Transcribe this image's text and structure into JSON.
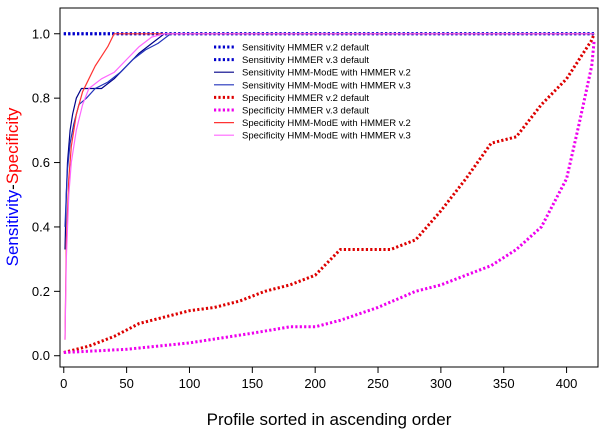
{
  "chart_data": {
    "type": "line",
    "title": "",
    "xlabel": "Profile sorted in ascending order",
    "ylabel": {
      "part1": "Sensitivity",
      "separator": "-",
      "part2": "Specificity",
      "part1_color": "#0000ff",
      "part2_color": "#ff0000",
      "separator_color": "#000000"
    },
    "xlim": [
      -3,
      425
    ],
    "ylim": [
      -0.035,
      1.08
    ],
    "xticks": [
      0,
      50,
      100,
      150,
      200,
      250,
      300,
      350,
      400
    ],
    "yticks": [
      0.0,
      0.2,
      0.4,
      0.6,
      0.8,
      1.0
    ],
    "ytick_labels": [
      "0.0",
      "0.2",
      "0.4",
      "0.6",
      "0.8",
      "1.0"
    ],
    "legend_position": "top-center",
    "series": [
      {
        "name": "Sensitivity HMMER v.2 default",
        "color": "#0000cc",
        "style": "dotted",
        "x": [
          0,
          422
        ],
        "y": [
          1.0,
          1.0
        ]
      },
      {
        "name": "Sensitivity HMMER v.3 default",
        "color": "#0000cc",
        "style": "dotted",
        "x": [
          0,
          422
        ],
        "y": [
          1.0,
          1.0
        ]
      },
      {
        "name": "Sensitivity HMM-ModE with HMMER v.2",
        "color": "#000088",
        "style": "solid",
        "x": [
          1,
          2,
          3,
          5,
          7,
          10,
          14,
          20,
          30,
          40,
          50,
          60,
          70,
          80,
          85,
          90,
          422
        ],
        "y": [
          0.33,
          0.5,
          0.6,
          0.7,
          0.75,
          0.8,
          0.83,
          0.83,
          0.83,
          0.86,
          0.9,
          0.94,
          0.97,
          1.0,
          1.0,
          1.0,
          1.0
        ]
      },
      {
        "name": "Sensitivity HMM-ModE with HMMER v.3",
        "color": "#2233bb",
        "style": "solid",
        "x": [
          1,
          2,
          3,
          5,
          8,
          12,
          18,
          25,
          35,
          45,
          55,
          65,
          75,
          85,
          422
        ],
        "y": [
          0.4,
          0.5,
          0.58,
          0.66,
          0.72,
          0.78,
          0.8,
          0.83,
          0.85,
          0.88,
          0.92,
          0.95,
          0.97,
          1.0,
          1.0
        ]
      },
      {
        "name": "Specificity HMMER v.2 default",
        "color": "#dd0000",
        "style": "dotted",
        "x": [
          0,
          20,
          40,
          60,
          80,
          100,
          120,
          140,
          160,
          180,
          200,
          220,
          240,
          260,
          280,
          300,
          320,
          340,
          360,
          380,
          400,
          410,
          420,
          422
        ],
        "y": [
          0.01,
          0.03,
          0.06,
          0.1,
          0.12,
          0.14,
          0.15,
          0.17,
          0.2,
          0.22,
          0.25,
          0.33,
          0.33,
          0.33,
          0.36,
          0.45,
          0.55,
          0.66,
          0.68,
          0.78,
          0.86,
          0.92,
          0.98,
          1.0
        ]
      },
      {
        "name": "Specificity HMMER v.3 default",
        "color": "#ee00ee",
        "style": "dotted",
        "x": [
          0,
          50,
          100,
          150,
          180,
          200,
          220,
          250,
          280,
          300,
          320,
          340,
          360,
          380,
          400,
          410,
          420,
          422
        ],
        "y": [
          0.01,
          0.02,
          0.04,
          0.07,
          0.09,
          0.09,
          0.11,
          0.15,
          0.2,
          0.22,
          0.25,
          0.28,
          0.33,
          0.4,
          0.55,
          0.72,
          0.9,
          0.98
        ]
      },
      {
        "name": "Specificity HMM-ModE with HMMER v.2",
        "color": "#ff3333",
        "style": "solid",
        "x": [
          1,
          2,
          4,
          6,
          10,
          15,
          20,
          25,
          30,
          35,
          40,
          45,
          50,
          422
        ],
        "y": [
          0.05,
          0.35,
          0.55,
          0.65,
          0.75,
          0.82,
          0.86,
          0.9,
          0.93,
          0.96,
          1.0,
          1.0,
          1.0,
          1.0
        ]
      },
      {
        "name": "Specificity HMM-ModE with HMMER v.3",
        "color": "#ff66ff",
        "style": "solid",
        "x": [
          1,
          2,
          4,
          6,
          10,
          15,
          20,
          30,
          40,
          50,
          60,
          70,
          80,
          422
        ],
        "y": [
          0.05,
          0.3,
          0.5,
          0.6,
          0.7,
          0.78,
          0.83,
          0.86,
          0.88,
          0.92,
          0.96,
          0.99,
          1.0,
          1.0
        ]
      }
    ]
  }
}
